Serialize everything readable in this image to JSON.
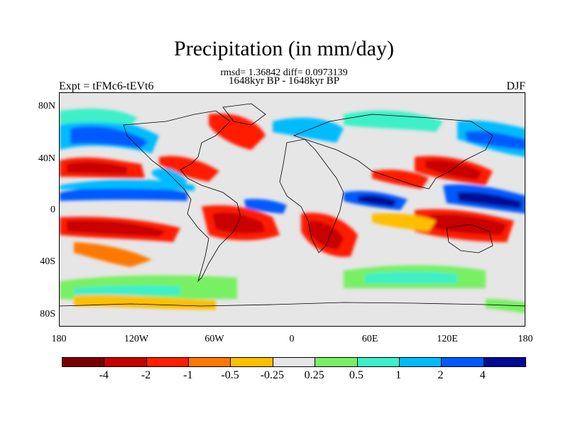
{
  "title": "Precipitation (in mm/day)",
  "stats": "rmsd= 1.36842 diff= 0.0973139",
  "period": "1648kyr BP - 1648kyr BP",
  "expt": "Expt = tFMc6-tEVt6",
  "season": "DJF",
  "y_labels": [
    "80N",
    "40N",
    "0",
    "40S",
    "80S"
  ],
  "x_labels": [
    "180",
    "120W",
    "60W",
    "0",
    "60E",
    "120E",
    "180"
  ],
  "colorbar": {
    "colors": [
      "#7a0000",
      "#c80000",
      "#ff1e00",
      "#ff7800",
      "#ffbe00",
      "#e6e6e6",
      "#78f064",
      "#3cf0c8",
      "#00bcff",
      "#005aff",
      "#000a96"
    ],
    "labels": [
      "-4",
      "-2",
      "-1",
      "-0.5",
      "-0.25",
      "0.25",
      "0.5",
      "1",
      "2",
      "4"
    ]
  }
}
